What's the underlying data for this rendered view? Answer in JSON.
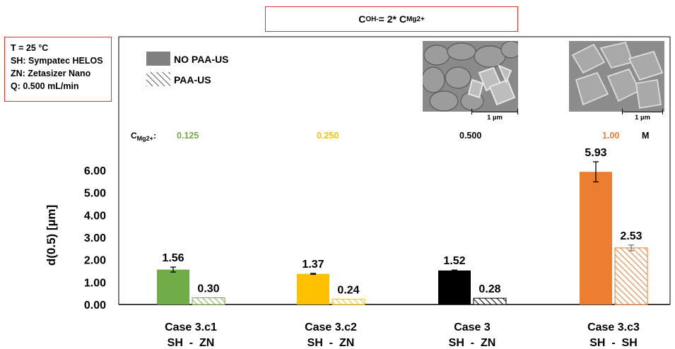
{
  "conditions": [
    "T = 25 °C",
    "SH: Sympatec HELOS",
    "ZN: Zetasizer Nano",
    "Q: 0.500 mL/min"
  ],
  "equation": {
    "prefix": "C",
    "sub1": "OH-",
    "mid": " = 2* C",
    "sub2": "Mg2+"
  },
  "conc_row": {
    "label_main": "C",
    "label_sub": "Mg2+",
    "label_suffix": ":",
    "values": [
      "0.125",
      "0.250",
      "0.500",
      "1.00"
    ],
    "value_colors": [
      "#70ad47",
      "#ffc000",
      "#000000",
      "#ed7d31"
    ],
    "unit": "M"
  },
  "sem_images": [
    {
      "scale_label": "1 µm"
    },
    {
      "scale_label": "1 µm"
    }
  ],
  "chart_data": {
    "type": "bar",
    "categories": [
      "Case 3.c1",
      "Case 3.c2",
      "Case 3",
      "Case 3.c3"
    ],
    "category_sublabels": [
      "SH  -  ZN",
      "SH  -  ZN",
      "SH  -  ZN",
      "SH  -  SH"
    ],
    "colors": [
      "#70ad47",
      "#ffc000",
      "#000000",
      "#ed7d31"
    ],
    "series": [
      {
        "name": "NO PAA-US",
        "style": "solid",
        "values": [
          1.56,
          1.37,
          1.52,
          5.93
        ],
        "errors": [
          0.11,
          0.02,
          0.02,
          0.45
        ],
        "labels": [
          "1.56",
          "1.37",
          "1.52",
          "5.93"
        ]
      },
      {
        "name": "PAA-US",
        "style": "hatched",
        "values": [
          0.3,
          0.24,
          0.28,
          2.53
        ],
        "errors": [
          0,
          0,
          0,
          0.13
        ],
        "labels": [
          "0.30",
          "0.24",
          "0.28",
          "2.53"
        ]
      }
    ],
    "ylabel": "d(0.5) [µm]",
    "ylim": [
      0,
      6
    ],
    "yticks": [
      "0.00",
      "1.00",
      "2.00",
      "3.00",
      "4.00",
      "5.00",
      "6.00"
    ],
    "legend_placement": "top-left",
    "legend_swatch_color": "#808080"
  }
}
